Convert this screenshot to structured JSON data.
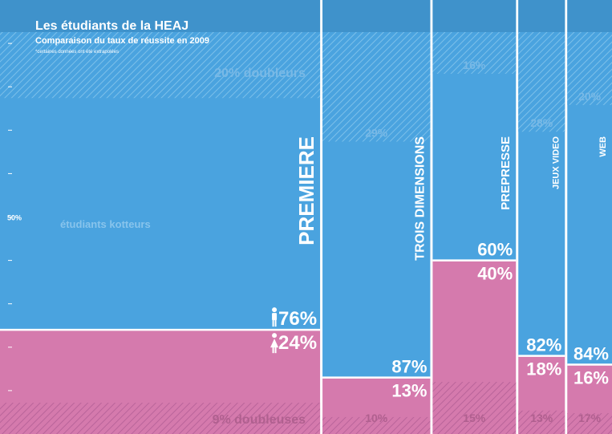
{
  "header": {
    "title": "Les étudiants de la HEAJ",
    "subtitle": "Comparaison du taux de réussite en 2009",
    "note": "*certaines données ont été extrapolées"
  },
  "colors": {
    "blue": "#4aa3df",
    "blue_dark": "#3d8fc8",
    "pink": "#d57aad",
    "pink_dark": "#c06a9c",
    "background": "#ffffff"
  },
  "icons": {
    "male": "male-figure-icon",
    "female": "female-figure-icon"
  },
  "chart_data": {
    "type": "mosaic",
    "title": "Les étudiants de la HEAJ",
    "subtitle": "Comparaison du taux de réussite en 2009",
    "ylim": [
      0,
      100
    ],
    "y_axis_label": "50%",
    "annotations": {
      "repeaters_top": "20% doubleurs",
      "repeaters_bottom": "9% doubleuses",
      "cobblers": "étudiants kotteurs"
    },
    "categories": [
      "PREMIERE",
      "TROIS DIMENSIONS",
      "PREPRESSE",
      "JEUX VIDEO",
      "WEB"
    ],
    "column_width_share": [
      52.5,
      18,
      14,
      8,
      7.5
    ],
    "series": [
      {
        "name": "hommes",
        "values": [
          76,
          87,
          60,
          82,
          84
        ]
      },
      {
        "name": "femmes",
        "values": [
          24,
          13,
          40,
          18,
          16
        ]
      }
    ],
    "value_labels_male": [
      "76%",
      "87%",
      "60%",
      "82%",
      "84%"
    ],
    "value_labels_female": [
      "24%",
      "13%",
      "40%",
      "18%",
      "16%"
    ],
    "repeaters_male_pct": [
      20,
      29,
      16,
      28,
      20
    ],
    "repeaters_male_labels": [
      "20% doubleurs",
      "29%",
      "16%",
      "28%",
      "20%"
    ],
    "repeaters_female_pct": [
      9,
      10,
      15,
      13,
      17
    ],
    "repeaters_female_labels": [
      "9% doubleuses",
      "10%",
      "15%",
      "13%",
      "17%"
    ]
  }
}
